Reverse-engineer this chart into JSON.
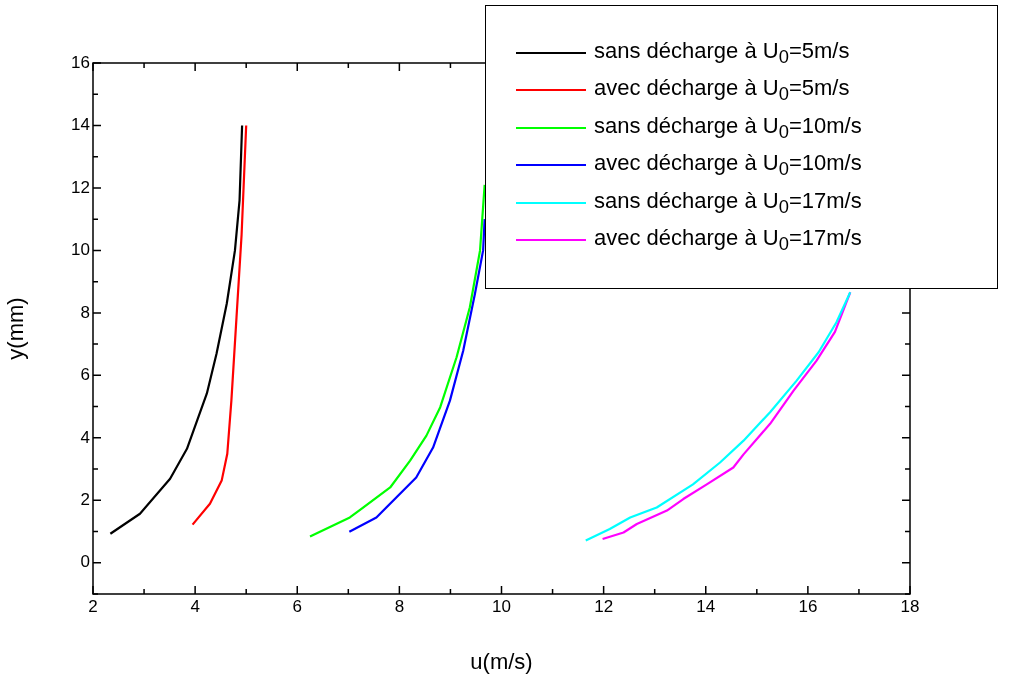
{
  "chart_data": {
    "type": "line",
    "xlabel": "u(m/s)",
    "ylabel": "y(mm)",
    "xlim": [
      2,
      18
    ],
    "ylim": [
      -1,
      16
    ],
    "xticks": [
      2,
      {
        "value": 3,
        "label": null
      },
      4,
      {
        "value": 5,
        "label": null
      },
      6,
      {
        "value": 7,
        "label": null
      },
      8,
      {
        "value": 9,
        "label": null
      },
      10,
      {
        "value": 11,
        "label": null
      },
      12,
      {
        "value": 13,
        "label": null
      },
      14,
      {
        "value": 15,
        "label": null
      },
      16,
      {
        "value": 17,
        "label": null
      },
      18
    ],
    "yticks": [
      {
        "value": -1,
        "label": null
      },
      0,
      {
        "value": 1,
        "label": null
      },
      2,
      {
        "value": 3,
        "label": null
      },
      4,
      {
        "value": 5,
        "label": null
      },
      6,
      {
        "value": 7,
        "label": null
      },
      8,
      {
        "value": 9,
        "label": null
      },
      10,
      {
        "value": 11,
        "label": null
      },
      12,
      {
        "value": 13,
        "label": null
      },
      14,
      {
        "value": 15,
        "label": null
      },
      16
    ],
    "grid": false,
    "legend": "top right",
    "marker": "none",
    "line_style": "solid",
    "series": [
      {
        "name": "sans décharge à U$_{0}$=5m/s",
        "color": "#000000",
        "x": [
          2.34,
          2.92,
          3.51,
          3.84,
          4.23,
          4.42,
          4.62,
          4.78,
          4.87,
          4.92
        ],
        "values": [
          0.93,
          1.57,
          2.69,
          3.65,
          5.42,
          6.7,
          8.3,
          10.0,
          11.6,
          14.0
        ]
      },
      {
        "name": "avec décharge à U$_{0}$=5m/s",
        "color": "#ff0000",
        "x": [
          3.95,
          4.29,
          4.52,
          4.63,
          4.71,
          4.81,
          4.91,
          5.0
        ],
        "values": [
          1.22,
          1.89,
          2.63,
          3.49,
          5.19,
          7.85,
          10.5,
          14.0
        ]
      },
      {
        "name": "sans décharge à U$_{0}$=10m/s",
        "color": "#00ff00",
        "x": [
          6.25,
          7.03,
          7.82,
          8.21,
          8.53,
          8.8,
          9.12,
          9.38,
          9.58,
          9.67
        ],
        "values": [
          0.84,
          1.45,
          2.41,
          3.27,
          4.07,
          4.98,
          6.58,
          8.18,
          10.0,
          12.1
        ]
      },
      {
        "name": "avec décharge à U$_{0}$=10m/s",
        "color": "#0000ff",
        "x": [
          7.02,
          7.55,
          8.33,
          8.66,
          8.99,
          9.25,
          9.48,
          9.64,
          9.67
        ],
        "values": [
          0.99,
          1.45,
          2.73,
          3.69,
          5.19,
          6.79,
          8.61,
          10.0,
          11.0
        ]
      },
      {
        "name": "sans décharge à U$_{0}$=17m/s",
        "color": "#00ffff",
        "x": [
          11.65,
          12.12,
          12.52,
          13.04,
          13.75,
          14.28,
          14.74,
          15.26,
          15.78,
          16.21,
          16.56,
          16.83
        ],
        "values": [
          0.71,
          1.08,
          1.45,
          1.77,
          2.51,
          3.21,
          3.91,
          4.82,
          5.83,
          6.74,
          7.7,
          8.66
        ]
      },
      {
        "name": "avec décharge à U$_{0}$=17m/s",
        "color": "#ff00ff",
        "x": [
          11.98,
          12.39,
          12.65,
          13.24,
          13.56,
          14.02,
          14.54,
          14.74,
          15.26,
          15.72,
          16.17,
          16.53,
          16.83
        ],
        "values": [
          0.76,
          0.97,
          1.24,
          1.67,
          2.04,
          2.51,
          3.05,
          3.47,
          4.45,
          5.51,
          6.47,
          7.39,
          8.66
        ]
      }
    ]
  }
}
